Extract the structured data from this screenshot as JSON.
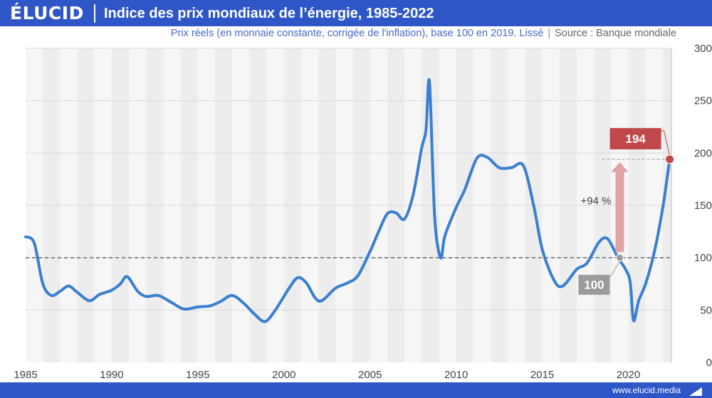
{
  "header": {
    "brand": "ÉLUCID",
    "title": "Indice des prix mondiaux de l’énergie, 1985-2022",
    "subtitle": "Prix réels (en monnaie constante, corrigée de l'inflation), base 100 en 2019. Lissé",
    "separator": "|",
    "source": "Source : Banque mondiale"
  },
  "footer": {
    "credit": "www.elucid.media"
  },
  "colors": {
    "brand_blue": "#2e56c7",
    "line": "#3a7fd0",
    "highlight_red": "#c0474a",
    "arrow_pink": "#e2a3a7",
    "grey_label": "#9b9b9b"
  },
  "chart_data": {
    "type": "line",
    "title": "Indice des prix mondiaux de l’énergie, 1985-2022",
    "xlabel": "",
    "ylabel": "",
    "xlim": [
      1985,
      2022.5
    ],
    "ylim": [
      0,
      300
    ],
    "x_ticks": [
      1985,
      1990,
      1995,
      2000,
      2005,
      2010,
      2015,
      2020
    ],
    "y_ticks": [
      0,
      50,
      100,
      150,
      200,
      250,
      300
    ],
    "reference_line": {
      "value": 100,
      "style": "dashed"
    },
    "series": [
      {
        "name": "Indice des prix de l'énergie (base 100 en 2019)",
        "points": [
          [
            1985,
            120
          ],
          [
            1985.5,
            114
          ],
          [
            1986,
            75
          ],
          [
            1986.5,
            64
          ],
          [
            1987,
            68
          ],
          [
            1987.5,
            73
          ],
          [
            1988,
            67
          ],
          [
            1988.7,
            59
          ],
          [
            1989.3,
            65
          ],
          [
            1990,
            69
          ],
          [
            1990.5,
            75
          ],
          [
            1990.9,
            82
          ],
          [
            1991.5,
            68
          ],
          [
            1992,
            63
          ],
          [
            1992.7,
            64
          ],
          [
            1993.5,
            57
          ],
          [
            1994.2,
            51
          ],
          [
            1995,
            53
          ],
          [
            1995.7,
            54
          ],
          [
            1996.3,
            58
          ],
          [
            1997,
            64
          ],
          [
            1997.7,
            56
          ],
          [
            1998.3,
            46
          ],
          [
            1998.9,
            39
          ],
          [
            1999.5,
            50
          ],
          [
            2000.3,
            71
          ],
          [
            2000.8,
            81
          ],
          [
            2001.3,
            76
          ],
          [
            2001.8,
            62
          ],
          [
            2002.2,
            59
          ],
          [
            2003,
            71
          ],
          [
            2003.7,
            76
          ],
          [
            2004.3,
            83
          ],
          [
            2005,
            106
          ],
          [
            2005.5,
            125
          ],
          [
            2006,
            142
          ],
          [
            2006.5,
            143
          ],
          [
            2007,
            137
          ],
          [
            2007.5,
            160
          ],
          [
            2008,
            205
          ],
          [
            2008.25,
            222
          ],
          [
            2008.45,
            268
          ],
          [
            2008.75,
            140
          ],
          [
            2009.1,
            100
          ],
          [
            2009.35,
            121
          ],
          [
            2010,
            148
          ],
          [
            2010.5,
            165
          ],
          [
            2011.2,
            195
          ],
          [
            2011.8,
            196
          ],
          [
            2012.5,
            186
          ],
          [
            2013.2,
            186
          ],
          [
            2013.9,
            188
          ],
          [
            2014.5,
            150
          ],
          [
            2015,
            108
          ],
          [
            2015.7,
            78
          ],
          [
            2016.2,
            73
          ],
          [
            2017,
            89
          ],
          [
            2017.6,
            95
          ],
          [
            2018.3,
            115
          ],
          [
            2018.8,
            118
          ],
          [
            2019.4,
            100
          ],
          [
            2019.8,
            90
          ],
          [
            2020.1,
            77
          ],
          [
            2020.3,
            40
          ],
          [
            2020.6,
            59
          ],
          [
            2021,
            75
          ],
          [
            2021.5,
            105
          ],
          [
            2022,
            148
          ],
          [
            2022.4,
            194
          ]
        ]
      }
    ],
    "annotations": [
      {
        "label": "100",
        "x": 2019.5,
        "y": 100,
        "style": "grey-box"
      },
      {
        "label": "194",
        "x": 2022.4,
        "y": 194,
        "style": "red-box"
      },
      {
        "label": "+94 %",
        "from": 100,
        "to": 194,
        "style": "arrow"
      }
    ]
  }
}
